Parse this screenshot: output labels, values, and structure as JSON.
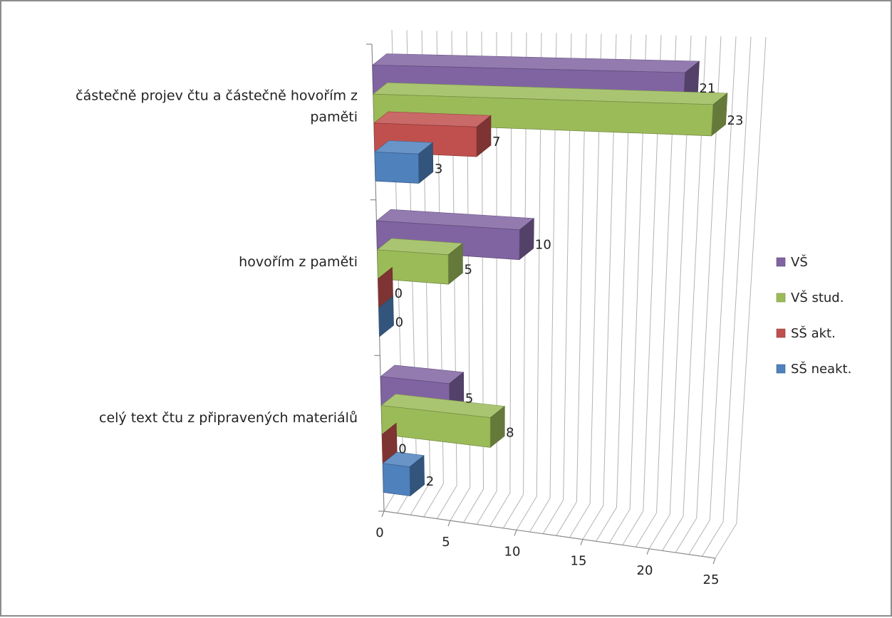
{
  "chart_data": {
    "type": "bar",
    "orientation": "horizontal",
    "style": "3d",
    "categories": [
      [
        "částečně projev čtu a částečně hovořím z",
        "paměti"
      ],
      [
        "hovořím z paměti"
      ],
      [
        "celý text čtu z připravených materiálů"
      ]
    ],
    "series": [
      {
        "name": "VŠ",
        "color": "#8064a2",
        "values": [
          21,
          10,
          5
        ]
      },
      {
        "name": "VŠ stud.",
        "color": "#9bbb59",
        "values": [
          23,
          5,
          8
        ]
      },
      {
        "name": "SŠ akt.",
        "color": "#c0504d",
        "values": [
          7,
          0,
          0
        ]
      },
      {
        "name": "SŠ neakt.",
        "color": "#4f81bd",
        "values": [
          3,
          0,
          2
        ]
      }
    ],
    "x_ticks": [
      "0",
      "5",
      "10",
      "15",
      "20",
      "25"
    ],
    "xlim": [
      0,
      25
    ],
    "grid": true,
    "legend_position": "right"
  }
}
